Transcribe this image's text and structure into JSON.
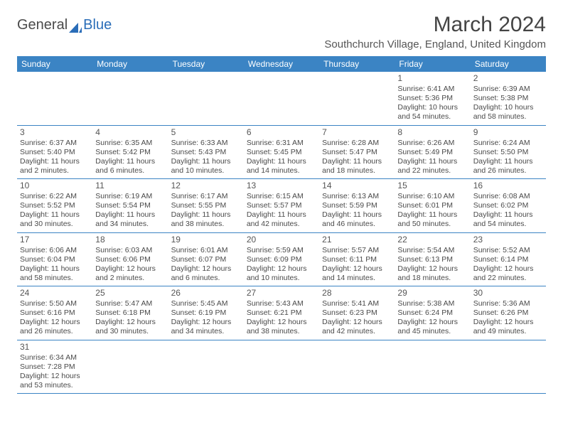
{
  "logo": {
    "part1": "General",
    "part2": "Blue"
  },
  "title": "March 2024",
  "location": "Southchurch Village, England, United Kingdom",
  "colors": {
    "header_bg": "#3b84c4",
    "header_text": "#ffffff",
    "border": "#3b84c4",
    "text": "#4a4a4a",
    "logo_blue": "#2a6db8"
  },
  "dow": [
    "Sunday",
    "Monday",
    "Tuesday",
    "Wednesday",
    "Thursday",
    "Friday",
    "Saturday"
  ],
  "weeks": [
    [
      null,
      null,
      null,
      null,
      null,
      {
        "n": "1",
        "sr": "Sunrise: 6:41 AM",
        "ss": "Sunset: 5:36 PM",
        "dl": "Daylight: 10 hours and 54 minutes."
      },
      {
        "n": "2",
        "sr": "Sunrise: 6:39 AM",
        "ss": "Sunset: 5:38 PM",
        "dl": "Daylight: 10 hours and 58 minutes."
      }
    ],
    [
      {
        "n": "3",
        "sr": "Sunrise: 6:37 AM",
        "ss": "Sunset: 5:40 PM",
        "dl": "Daylight: 11 hours and 2 minutes."
      },
      {
        "n": "4",
        "sr": "Sunrise: 6:35 AM",
        "ss": "Sunset: 5:42 PM",
        "dl": "Daylight: 11 hours and 6 minutes."
      },
      {
        "n": "5",
        "sr": "Sunrise: 6:33 AM",
        "ss": "Sunset: 5:43 PM",
        "dl": "Daylight: 11 hours and 10 minutes."
      },
      {
        "n": "6",
        "sr": "Sunrise: 6:31 AM",
        "ss": "Sunset: 5:45 PM",
        "dl": "Daylight: 11 hours and 14 minutes."
      },
      {
        "n": "7",
        "sr": "Sunrise: 6:28 AM",
        "ss": "Sunset: 5:47 PM",
        "dl": "Daylight: 11 hours and 18 minutes."
      },
      {
        "n": "8",
        "sr": "Sunrise: 6:26 AM",
        "ss": "Sunset: 5:49 PM",
        "dl": "Daylight: 11 hours and 22 minutes."
      },
      {
        "n": "9",
        "sr": "Sunrise: 6:24 AM",
        "ss": "Sunset: 5:50 PM",
        "dl": "Daylight: 11 hours and 26 minutes."
      }
    ],
    [
      {
        "n": "10",
        "sr": "Sunrise: 6:22 AM",
        "ss": "Sunset: 5:52 PM",
        "dl": "Daylight: 11 hours and 30 minutes."
      },
      {
        "n": "11",
        "sr": "Sunrise: 6:19 AM",
        "ss": "Sunset: 5:54 PM",
        "dl": "Daylight: 11 hours and 34 minutes."
      },
      {
        "n": "12",
        "sr": "Sunrise: 6:17 AM",
        "ss": "Sunset: 5:55 PM",
        "dl": "Daylight: 11 hours and 38 minutes."
      },
      {
        "n": "13",
        "sr": "Sunrise: 6:15 AM",
        "ss": "Sunset: 5:57 PM",
        "dl": "Daylight: 11 hours and 42 minutes."
      },
      {
        "n": "14",
        "sr": "Sunrise: 6:13 AM",
        "ss": "Sunset: 5:59 PM",
        "dl": "Daylight: 11 hours and 46 minutes."
      },
      {
        "n": "15",
        "sr": "Sunrise: 6:10 AM",
        "ss": "Sunset: 6:01 PM",
        "dl": "Daylight: 11 hours and 50 minutes."
      },
      {
        "n": "16",
        "sr": "Sunrise: 6:08 AM",
        "ss": "Sunset: 6:02 PM",
        "dl": "Daylight: 11 hours and 54 minutes."
      }
    ],
    [
      {
        "n": "17",
        "sr": "Sunrise: 6:06 AM",
        "ss": "Sunset: 6:04 PM",
        "dl": "Daylight: 11 hours and 58 minutes."
      },
      {
        "n": "18",
        "sr": "Sunrise: 6:03 AM",
        "ss": "Sunset: 6:06 PM",
        "dl": "Daylight: 12 hours and 2 minutes."
      },
      {
        "n": "19",
        "sr": "Sunrise: 6:01 AM",
        "ss": "Sunset: 6:07 PM",
        "dl": "Daylight: 12 hours and 6 minutes."
      },
      {
        "n": "20",
        "sr": "Sunrise: 5:59 AM",
        "ss": "Sunset: 6:09 PM",
        "dl": "Daylight: 12 hours and 10 minutes."
      },
      {
        "n": "21",
        "sr": "Sunrise: 5:57 AM",
        "ss": "Sunset: 6:11 PM",
        "dl": "Daylight: 12 hours and 14 minutes."
      },
      {
        "n": "22",
        "sr": "Sunrise: 5:54 AM",
        "ss": "Sunset: 6:13 PM",
        "dl": "Daylight: 12 hours and 18 minutes."
      },
      {
        "n": "23",
        "sr": "Sunrise: 5:52 AM",
        "ss": "Sunset: 6:14 PM",
        "dl": "Daylight: 12 hours and 22 minutes."
      }
    ],
    [
      {
        "n": "24",
        "sr": "Sunrise: 5:50 AM",
        "ss": "Sunset: 6:16 PM",
        "dl": "Daylight: 12 hours and 26 minutes."
      },
      {
        "n": "25",
        "sr": "Sunrise: 5:47 AM",
        "ss": "Sunset: 6:18 PM",
        "dl": "Daylight: 12 hours and 30 minutes."
      },
      {
        "n": "26",
        "sr": "Sunrise: 5:45 AM",
        "ss": "Sunset: 6:19 PM",
        "dl": "Daylight: 12 hours and 34 minutes."
      },
      {
        "n": "27",
        "sr": "Sunrise: 5:43 AM",
        "ss": "Sunset: 6:21 PM",
        "dl": "Daylight: 12 hours and 38 minutes."
      },
      {
        "n": "28",
        "sr": "Sunrise: 5:41 AM",
        "ss": "Sunset: 6:23 PM",
        "dl": "Daylight: 12 hours and 42 minutes."
      },
      {
        "n": "29",
        "sr": "Sunrise: 5:38 AM",
        "ss": "Sunset: 6:24 PM",
        "dl": "Daylight: 12 hours and 45 minutes."
      },
      {
        "n": "30",
        "sr": "Sunrise: 5:36 AM",
        "ss": "Sunset: 6:26 PM",
        "dl": "Daylight: 12 hours and 49 minutes."
      }
    ],
    [
      {
        "n": "31",
        "sr": "Sunrise: 6:34 AM",
        "ss": "Sunset: 7:28 PM",
        "dl": "Daylight: 12 hours and 53 minutes."
      },
      null,
      null,
      null,
      null,
      null,
      null
    ]
  ]
}
